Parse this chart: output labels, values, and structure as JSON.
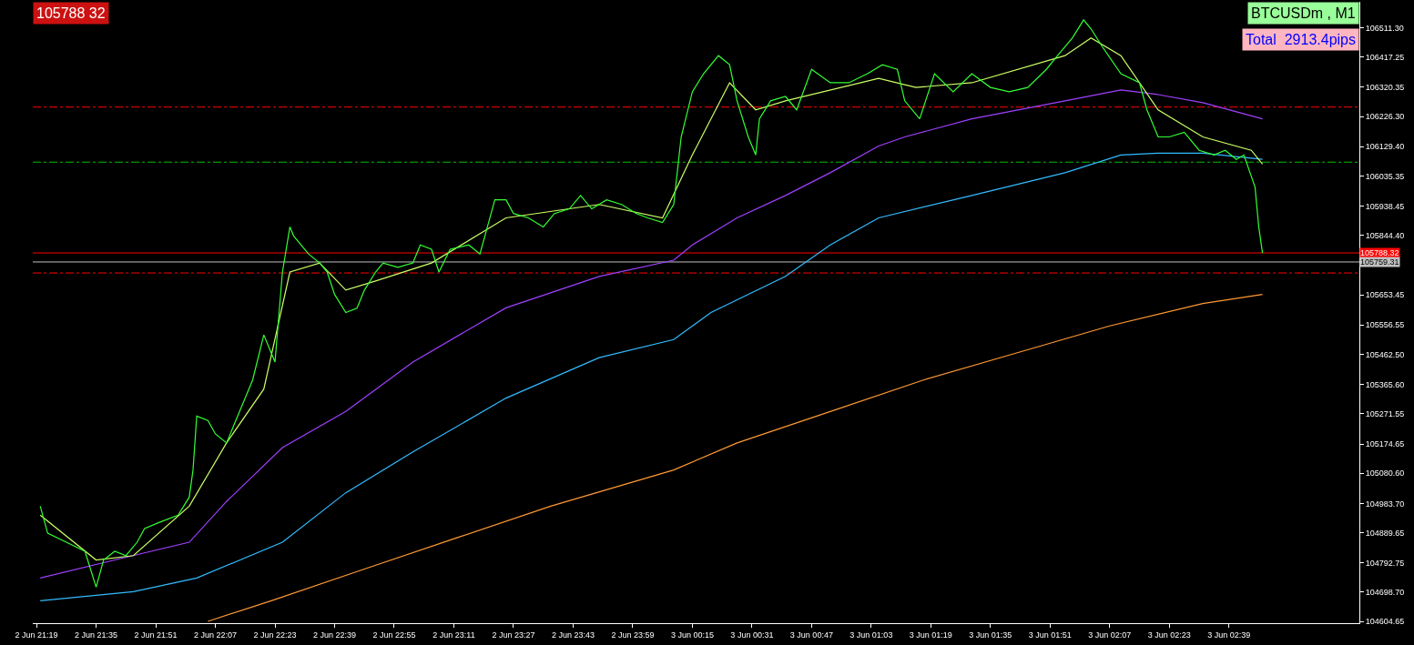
{
  "chart_data": {
    "type": "line",
    "annotations": [
      "105788 32",
      "BTCUSDm , M1",
      "Total  2913.4pips"
    ],
    "grid": false,
    "marker": "none",
    "xlim": [
      "--06-02T21:18",
      "--06-03T03:14"
    ],
    "xticks": [
      {
        "value": "--06-02T21:19",
        "label": "2 Jun 21:19"
      },
      {
        "value": "--06-02T21:35",
        "label": "2 Jun 21:35"
      },
      {
        "value": "--06-02T21:51",
        "label": "2 Jun 21:51"
      },
      {
        "value": "--06-02T22:07",
        "label": "2 Jun 22:07"
      },
      {
        "value": "--06-02T22:23",
        "label": "2 Jun 22:23"
      },
      {
        "value": "--06-02T22:39",
        "label": "2 Jun 22:39"
      },
      {
        "value": "--06-02T22:55",
        "label": "2 Jun 22:55"
      },
      {
        "value": "--06-02T23:11",
        "label": "2 Jun 23:11"
      },
      {
        "value": "--06-02T23:27",
        "label": "2 Jun 23:27"
      },
      {
        "value": "--06-02T23:43",
        "label": "2 Jun 23:43"
      },
      {
        "value": "--06-02T23:59",
        "label": "2 Jun 23:59"
      },
      {
        "value": "--06-03T00:15",
        "label": "3 Jun 00:15"
      },
      {
        "value": "--06-03T00:31",
        "label": "3 Jun 00:31"
      },
      {
        "value": "--06-03T00:47",
        "label": "3 Jun 00:47"
      },
      {
        "value": "--06-03T01:03",
        "label": "3 Jun 01:03"
      },
      {
        "value": "--06-03T01:19",
        "label": "3 Jun 01:19"
      },
      {
        "value": "--06-03T01:35",
        "label": "3 Jun 01:35"
      },
      {
        "value": "--06-03T01:51",
        "label": "3 Jun 01:51"
      },
      {
        "value": "--06-03T02:07",
        "label": "3 Jun 02:07"
      },
      {
        "value": "--06-03T02:23",
        "label": "3 Jun 02:23"
      },
      {
        "value": "--06-03T02:39",
        "label": "3 Jun 02:39"
      }
    ],
    "ylim": [
      104599,
      106595
    ],
    "yticks": [
      {
        "value": 106511.3,
        "label": "106511.30"
      },
      106417.25,
      {
        "value": 106320.35,
        "label": "106320.35"
      },
      {
        "value": 106226.3,
        "label": "106226.30"
      },
      {
        "value": 106129.4,
        "label": "106129.40"
      },
      {
        "value": 106035.35,
        "label": "106035.35"
      },
      {
        "value": 105938.45,
        "label": "105938.45"
      },
      {
        "value": 105844.4,
        "label": "105844.40"
      },
      {
        "value": 105653.45,
        "label": "105653.45"
      },
      {
        "value": 105556.55,
        "label": "105556.55"
      },
      {
        "value": 105462.5,
        "label": "105462.50"
      },
      {
        "value": 105365.6,
        "label": "105365.60"
      },
      {
        "value": 105271.55,
        "label": "105271.55"
      },
      {
        "value": 105174.65,
        "label": "105174.65"
      },
      {
        "value": 105080.6,
        "label": "105080.60"
      },
      {
        "value": 104983.7,
        "label": "104983.70"
      },
      {
        "value": 104889.65,
        "label": "104889.65"
      },
      {
        "value": 104792.75,
        "label": "104792.75"
      },
      {
        "value": 104698.7,
        "label": "104698.70"
      },
      {
        "value": 104604.65,
        "label": "104604.65"
      }
    ],
    "ref_lines": [
      {
        "axis": "y",
        "value": 106257,
        "color": "#ff0000",
        "line_style": "dashdot"
      },
      {
        "axis": "y",
        "value": 106080,
        "color": "#00c000",
        "line_style": "dashdot"
      },
      {
        "axis": "y",
        "value": 105724,
        "color": "#ff0000",
        "line_style": "dashdot"
      },
      {
        "axis": "y",
        "value": 105788.32,
        "label": "105788.32",
        "color": "#ff0000",
        "line_style": "solid"
      },
      {
        "axis": "y",
        "value": 105759.31,
        "label": "105759.31",
        "color": "#c0c0c0",
        "line_style": "solid"
      }
    ],
    "series": [
      {
        "color": "#ff9933",
        "x": [
          "--06-02T22:05",
          "--06-02T22:22",
          "--06-02T22:47",
          "--06-02T23:12",
          "--06-02T23:37",
          "--06-03T00:10",
          "--06-03T00:27",
          "--06-03T00:52",
          "--06-03T01:17",
          "--06-03T01:42",
          "--06-03T02:07",
          "--06-03T02:32",
          "--06-03T02:48"
        ],
        "values": [
          104605,
          104671,
          104773,
          104874,
          104975,
          105091,
          105178,
          105279,
          105380,
          105467,
          105554,
          105626,
          105655
        ]
      },
      {
        "color": "#33bbff",
        "x": [
          "--06-02T21:20",
          "--06-02T21:45",
          "--06-02T22:02",
          "--06-02T22:25",
          "--06-02T22:42",
          "--06-02T23:00",
          "--06-02T23:25",
          "--06-02T23:50",
          "--06-03T00:10",
          "--06-03T00:20",
          "--06-03T00:40",
          "--06-03T00:52",
          "--06-03T01:05",
          "--06-03T01:30",
          "--06-03T01:55",
          "--06-03T02:10",
          "--06-03T02:20",
          "--06-03T02:32",
          "--06-03T02:48"
        ],
        "values": [
          104671,
          104700,
          104744,
          104859,
          105018,
          105149,
          105322,
          105452,
          105510,
          105597,
          105713,
          105814,
          105901,
          105973,
          106046,
          106103,
          106109,
          106109,
          106089
        ]
      },
      {
        "color": "#a040ff",
        "x": [
          "--06-02T21:20",
          "--06-02T21:40",
          "--06-02T22:00",
          "--06-02T22:10",
          "--06-02T22:25",
          "--06-02T22:42",
          "--06-02T23:00",
          "--06-02T23:25",
          "--06-02T23:50",
          "--06-03T00:10",
          "--06-03T00:15",
          "--06-03T00:27",
          "--06-03T00:40",
          "--06-03T00:52",
          "--06-03T01:05",
          "--06-03T01:12",
          "--06-03T01:30",
          "--06-03T01:55",
          "--06-03T02:10",
          "--06-03T02:20",
          "--06-03T02:32",
          "--06-03T02:48"
        ],
        "values": [
          104744,
          104802,
          104859,
          104990,
          105163,
          105279,
          105438,
          105612,
          105713,
          105765,
          105814,
          105901,
          105973,
          106046,
          106132,
          106161,
          106219,
          106277,
          106312,
          106297,
          106271,
          106219
        ]
      },
      {
        "color": "#ccff66",
        "x": [
          "--06-02T21:20",
          "--06-02T21:35",
          "--06-02T21:45",
          "--06-02T22:00",
          "--06-02T22:10",
          "--06-02T22:20",
          "--06-02T22:27",
          "--06-02T22:35",
          "--06-02T22:42",
          "--06-02T22:50",
          "--06-02T23:05",
          "--06-02T23:25",
          "--06-02T23:50",
          "--06-03T00:07",
          "--06-03T00:15",
          "--06-03T00:25",
          "--06-03T00:32",
          "--06-03T00:40",
          "--06-03T01:05",
          "--06-03T01:15",
          "--06-03T01:30",
          "--06-03T01:55",
          "--06-03T02:02",
          "--06-03T02:10",
          "--06-03T02:20",
          "--06-03T02:32",
          "--06-03T02:45",
          "--06-03T02:48"
        ],
        "values": [
          104946,
          104802,
          104816,
          104975,
          105178,
          105351,
          105727,
          105756,
          105669,
          105698,
          105756,
          105901,
          105944,
          105901,
          106103,
          106335,
          106248,
          106277,
          106349,
          106320,
          106335,
          106422,
          106479,
          106422,
          106248,
          106161,
          106118,
          106074
        ]
      },
      {
        "color": "#33ff33",
        "x": [
          "--06-02T21:20",
          "--06-02T21:22",
          "--06-02T21:27",
          "--06-02T21:32",
          "--06-02T21:35",
          "--06-02T21:37",
          "--06-02T21:40",
          "--06-02T21:43",
          "--06-02T21:46",
          "--06-02T21:48",
          "--06-02T21:52",
          "--06-02T21:57",
          "--06-02T22:00",
          "--06-02T22:01",
          "--06-02T22:02",
          "--06-02T22:05",
          "--06-02T22:07",
          "--06-02T22:10",
          "--06-02T22:12",
          "--06-02T22:15",
          "--06-02T22:17",
          "--06-02T22:20",
          "--06-02T22:22",
          "--06-02T22:23",
          "--06-02T22:25",
          "--06-02T22:27",
          "--06-02T22:28",
          "--06-02T22:32",
          "--06-02T22:35",
          "--06-02T22:37",
          "--06-02T22:39",
          "--06-02T22:42",
          "--06-02T22:45",
          "--06-02T22:47",
          "--06-02T22:50",
          "--06-02T22:52",
          "--06-02T22:56",
          "--06-02T23:00",
          "--06-02T23:02",
          "--06-02T23:05",
          "--06-02T23:07",
          "--06-02T23:10",
          "--06-02T23:15",
          "--06-02T23:18",
          "--06-02T23:22",
          "--06-02T23:25",
          "--06-02T23:27",
          "--06-02T23:31",
          "--06-02T23:35",
          "--06-02T23:38",
          "--06-02T23:42",
          "--06-02T23:45",
          "--06-02T23:48",
          "--06-02T23:52",
          "--06-02T23:56",
          "--06-03T00:00",
          "--06-03T00:03",
          "--06-03T00:07",
          "--06-03T00:10",
          "--06-03T00:12",
          "--06-03T00:15",
          "--06-03T00:18",
          "--06-03T00:22",
          "--06-03T00:25",
          "--06-03T00:27",
          "--06-03T00:30",
          "--06-03T00:32",
          "--06-03T00:33",
          "--06-03T00:36",
          "--06-03T00:40",
          "--06-03T00:43",
          "--06-03T00:47",
          "--06-03T00:52",
          "--06-03T00:57",
          "--06-03T01:02",
          "--06-03T01:06",
          "--06-03T01:10",
          "--06-03T01:12",
          "--06-03T01:16",
          "--06-03T01:20",
          "--06-03T01:25",
          "--06-03T01:30",
          "--06-03T01:35",
          "--06-03T01:40",
          "--06-03T01:45",
          "--06-03T01:50",
          "--06-03T01:53",
          "--06-03T01:57",
          "--06-03T02:00",
          "--06-03T02:02",
          "--06-03T02:05",
          "--06-03T02:10",
          "--06-03T02:15",
          "--06-03T02:17",
          "--06-03T02:20",
          "--06-03T02:23",
          "--06-03T02:27",
          "--06-03T02:31",
          "--06-03T02:35",
          "--06-03T02:38",
          "--06-03T02:41",
          "--06-03T02:43",
          "--06-03T02:46",
          "--06-03T02:47",
          "--06-03T02:48"
        ],
        "values": [
          104975,
          104888,
          104859,
          104830,
          104715,
          104802,
          104830,
          104816,
          104859,
          104903,
          104923,
          104946,
          105004,
          105091,
          105264,
          105250,
          105207,
          105178,
          105236,
          105322,
          105380,
          105525,
          105467,
          105438,
          105727,
          105872,
          105843,
          105785,
          105756,
          105727,
          105655,
          105597,
          105611,
          105669,
          105727,
          105756,
          105742,
          105756,
          105814,
          105800,
          105727,
          105800,
          105814,
          105785,
          105959,
          105959,
          105915,
          105901,
          105872,
          105915,
          105930,
          105973,
          105930,
          105959,
          105944,
          105915,
          105901,
          105886,
          105944,
          106161,
          106306,
          106364,
          106422,
          106393,
          106277,
          106161,
          106103,
          106219,
          106277,
          106291,
          106248,
          106378,
          106335,
          106335,
          106364,
          106393,
          106378,
          106277,
          106219,
          106364,
          106306,
          106364,
          106320,
          106306,
          106320,
          106378,
          106422,
          106479,
          106537,
          106508,
          106451,
          106364,
          106335,
          106248,
          106161,
          106161,
          106176,
          106118,
          106103,
          106118,
          106089,
          106103,
          106000,
          105872,
          105788
        ]
      }
    ]
  }
}
